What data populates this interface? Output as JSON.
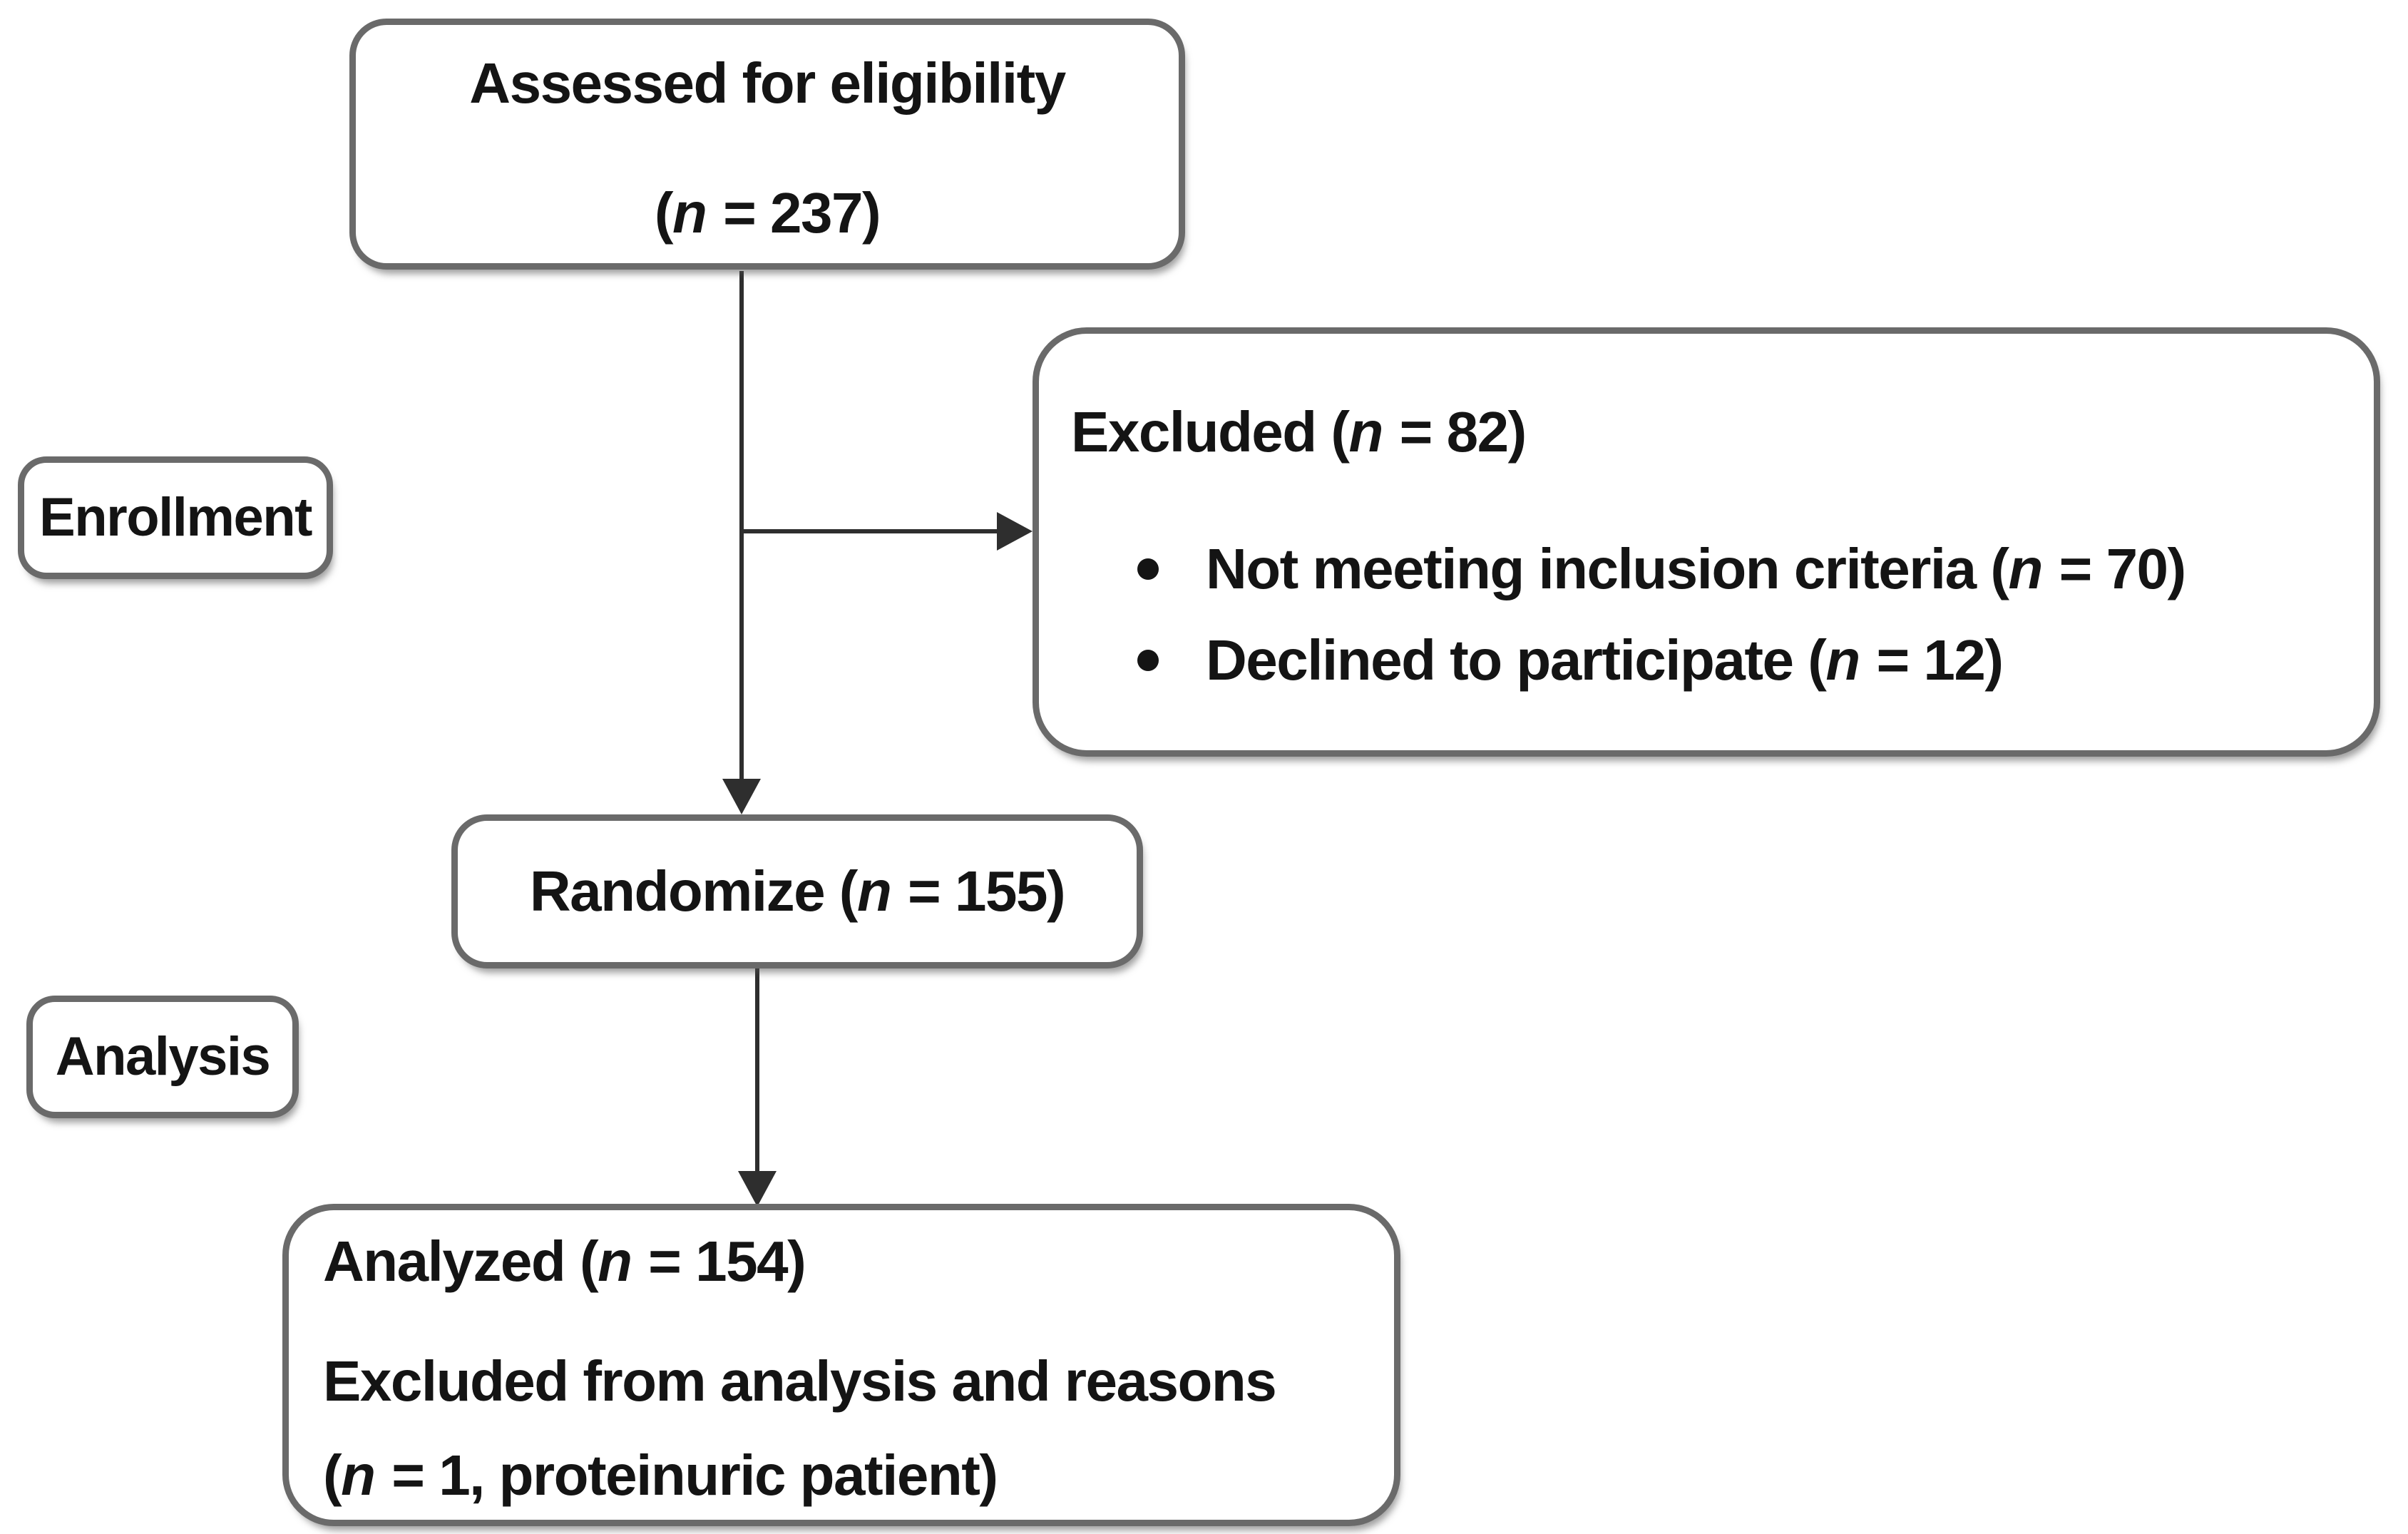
{
  "colors": {
    "box-border": "#6a6a6a",
    "text": "#141414",
    "arrow": "#2e2e2e",
    "bg": "#ffffff"
  },
  "n_symbol": "n",
  "assessed": {
    "title": "Assessed for eligibility",
    "count_pre": "(",
    "count_post": " = 237)"
  },
  "excluded": {
    "header_pre": "Excluded (",
    "header_post": " = 82)",
    "bullets": [
      {
        "pre": "Not meeting inclusion criteria (",
        "post": " = 70)"
      },
      {
        "pre": "Declined to participate (",
        "post": " = 12)"
      }
    ]
  },
  "labels": {
    "enrollment": "Enrollment",
    "analysis": "Analysis"
  },
  "randomize": {
    "pre": "Randomize (",
    "post": " = 155)"
  },
  "analyzed": {
    "line1_pre": "Analyzed (",
    "line1_post": " = 154)",
    "line2": "Excluded from analysis and reasons",
    "line3_pre": "(",
    "line3_post": " = 1, proteinuric patient)"
  }
}
